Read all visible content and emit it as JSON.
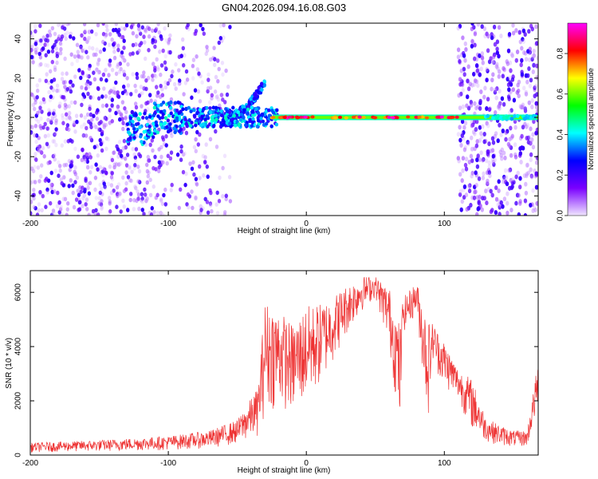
{
  "chart_data": [
    {
      "type": "heatmap",
      "title": "GN04.2026.094.16.08.G03",
      "xlabel": "Height of straight line (km)",
      "ylabel": "Frequency (Hz)",
      "xlim": [
        -200,
        168
      ],
      "ylim": [
        -50,
        48
      ],
      "xticks": [
        -200,
        -100,
        0,
        100
      ],
      "yticks": [
        -40,
        -20,
        0,
        20,
        40
      ],
      "colorbar": {
        "label": "Normalized spectral amplitude",
        "range": [
          0.0,
          0.95
        ],
        "ticks": [
          "0.0",
          "0.2",
          "0.4",
          "0.6",
          "0.8"
        ],
        "tick_values": [
          0.0,
          0.2,
          0.4,
          0.6,
          0.8
        ],
        "colors": [
          "#f0e6ff",
          "#7a00ff",
          "#0000ff",
          "#00ffff",
          "#00ff00",
          "#ffff00",
          "#ff0000",
          "#ff00ff"
        ]
      },
      "features": [
        {
          "name": "diffuse noise",
          "x": [
            -200,
            -55
          ],
          "freq": [
            -50,
            48
          ],
          "amplitude": 0.08
        },
        {
          "name": "rising branch",
          "x": [
            -60,
            -30
          ],
          "freq": [
            0,
            18
          ],
          "amplitude": 0.3
        },
        {
          "name": "carrier line",
          "x": [
            -130,
            168
          ],
          "freq": [
            0,
            0
          ],
          "amplitude": 0.85
        },
        {
          "name": "noise band",
          "x": [
            110,
            168
          ],
          "freq": [
            -50,
            48
          ],
          "amplitude": 0.12
        }
      ]
    },
    {
      "type": "line",
      "xlabel": "Height of straight line (km)",
      "ylabel": "SNR (10 * v/v)",
      "xlim": [
        -200,
        168
      ],
      "ylim": [
        0,
        6800
      ],
      "xticks": [
        -200,
        -100,
        0,
        100
      ],
      "yticks": [
        0,
        2000,
        4000,
        6000
      ],
      "series_color": "#ee3333",
      "envelope": {
        "x": [
          -200,
          -150,
          -100,
          -70,
          -50,
          -35,
          -30,
          -20,
          -10,
          0,
          10,
          20,
          30,
          40,
          50,
          60,
          68,
          70,
          80,
          88,
          92,
          95,
          100,
          110,
          120,
          130,
          140,
          150,
          160,
          168
        ],
        "min": [
          100,
          130,
          180,
          250,
          400,
          700,
          1500,
          1800,
          1500,
          1900,
          2500,
          3500,
          4500,
          5300,
          5800,
          4000,
          700,
          4500,
          5200,
          1200,
          3500,
          3000,
          2500,
          2000,
          900,
          500,
          350,
          300,
          300,
          1700
        ],
        "max": [
          450,
          550,
          700,
          900,
          1300,
          2500,
          5700,
          5400,
          4800,
          5500,
          5600,
          5900,
          6300,
          6600,
          6600,
          6200,
          4800,
          5800,
          6400,
          5000,
          4900,
          4600,
          4200,
          3200,
          2800,
          1400,
          1100,
          900,
          900,
          3500
        ]
      }
    }
  ]
}
